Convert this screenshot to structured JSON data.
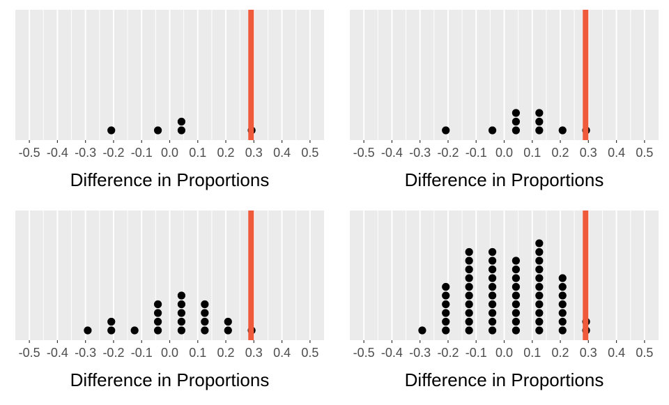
{
  "chart_data": [
    {
      "type": "dotplot",
      "xlabel": "Difference in Proportions",
      "xlim": [
        -0.55,
        0.55
      ],
      "x_ticks": [
        -0.5,
        -0.4,
        -0.3,
        -0.2,
        -0.1,
        0.0,
        0.1,
        0.2,
        0.3,
        0.4,
        0.5
      ],
      "tick_labels": [
        "-0.5",
        "-0.4",
        "-0.3",
        "-0.2",
        "-0.1",
        "0.0",
        "0.1",
        "0.2",
        "0.3",
        "0.4",
        "0.5"
      ],
      "reference_line": 0.29,
      "grid": true,
      "dots": [
        {
          "x": -0.208,
          "count": 1
        },
        {
          "x": -0.042,
          "count": 1
        },
        {
          "x": 0.042,
          "count": 2
        },
        {
          "x": 0.292,
          "count": 1
        }
      ]
    },
    {
      "type": "dotplot",
      "xlabel": "Difference in Proportions",
      "xlim": [
        -0.55,
        0.55
      ],
      "x_ticks": [
        -0.5,
        -0.4,
        -0.3,
        -0.2,
        -0.1,
        0.0,
        0.1,
        0.2,
        0.3,
        0.4,
        0.5
      ],
      "tick_labels": [
        "-0.5",
        "-0.4",
        "-0.3",
        "-0.2",
        "-0.1",
        "0.0",
        "0.1",
        "0.2",
        "0.3",
        "0.4",
        "0.5"
      ],
      "reference_line": 0.29,
      "grid": true,
      "dots": [
        {
          "x": -0.208,
          "count": 1
        },
        {
          "x": -0.042,
          "count": 1
        },
        {
          "x": 0.042,
          "count": 3
        },
        {
          "x": 0.125,
          "count": 3
        },
        {
          "x": 0.208,
          "count": 1
        },
        {
          "x": 0.292,
          "count": 1
        }
      ]
    },
    {
      "type": "dotplot",
      "xlabel": "Difference in Proportions",
      "xlim": [
        -0.55,
        0.55
      ],
      "x_ticks": [
        -0.5,
        -0.4,
        -0.3,
        -0.2,
        -0.1,
        0.0,
        0.1,
        0.2,
        0.3,
        0.4,
        0.5
      ],
      "tick_labels": [
        "-0.5",
        "-0.4",
        "-0.3",
        "-0.2",
        "-0.1",
        "0.0",
        "0.1",
        "0.2",
        "0.3",
        "0.4",
        "0.5"
      ],
      "reference_line": 0.29,
      "grid": true,
      "dots": [
        {
          "x": -0.292,
          "count": 1
        },
        {
          "x": -0.208,
          "count": 2
        },
        {
          "x": -0.125,
          "count": 1
        },
        {
          "x": -0.042,
          "count": 4
        },
        {
          "x": 0.042,
          "count": 5
        },
        {
          "x": 0.125,
          "count": 4
        },
        {
          "x": 0.208,
          "count": 2
        },
        {
          "x": 0.292,
          "count": 1
        }
      ]
    },
    {
      "type": "dotplot",
      "xlabel": "Difference in Proportions",
      "xlim": [
        -0.55,
        0.55
      ],
      "x_ticks": [
        -0.5,
        -0.4,
        -0.3,
        -0.2,
        -0.1,
        0.0,
        0.1,
        0.2,
        0.3,
        0.4,
        0.5
      ],
      "tick_labels": [
        "-0.5",
        "-0.4",
        "-0.3",
        "-0.2",
        "-0.1",
        "0.0",
        "0.1",
        "0.2",
        "0.3",
        "0.4",
        "0.5"
      ],
      "reference_line": 0.29,
      "grid": true,
      "dots": [
        {
          "x": -0.292,
          "count": 1
        },
        {
          "x": -0.208,
          "count": 6
        },
        {
          "x": -0.125,
          "count": 10
        },
        {
          "x": -0.042,
          "count": 10
        },
        {
          "x": 0.042,
          "count": 9
        },
        {
          "x": 0.125,
          "count": 11
        },
        {
          "x": 0.208,
          "count": 7
        },
        {
          "x": 0.292,
          "count": 2
        }
      ]
    }
  ],
  "colors": {
    "panel_bg": "#EBEBEB",
    "grid": "#FFFFFF",
    "dot": "#000000",
    "reference_line": "#F05A3C",
    "tick_text": "#4D4D4D",
    "label_text": "#000000"
  }
}
